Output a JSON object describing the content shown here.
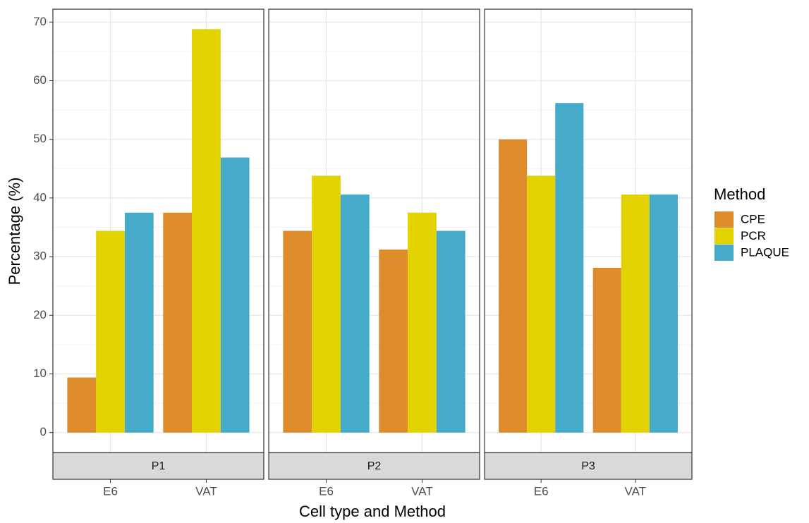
{
  "chart_data": {
    "type": "bar",
    "y_label": "Percentage (%)",
    "x_label": "Cell type and Method",
    "legend_title": "Method",
    "legend_position": "right",
    "panels": [
      "P1",
      "P2",
      "P3"
    ],
    "categories": [
      "E6",
      "VAT"
    ],
    "series": [
      {
        "name": "CPE",
        "color": "#de8c2b",
        "values": [
          [
            9.4,
            37.5
          ],
          [
            34.4,
            31.2
          ],
          [
            50,
            28.1
          ]
        ]
      },
      {
        "name": "PCR",
        "color": "#e1d200",
        "values": [
          [
            34.4,
            68.8
          ],
          [
            43.8,
            37.5
          ],
          [
            43.8,
            40.6
          ]
        ]
      },
      {
        "name": "PLAQUE",
        "color": "#46abc9",
        "values": [
          [
            37.5,
            46.9
          ],
          [
            40.6,
            34.4
          ],
          [
            56.2,
            40.6
          ]
        ]
      }
    ],
    "ylim": [
      -3.4,
      72.2
    ],
    "yticks": [
      0,
      10,
      20,
      30,
      40,
      50,
      60,
      70
    ],
    "y_minor_ticks": [
      5,
      15,
      25,
      35,
      45,
      55,
      65
    ],
    "grid": true
  }
}
